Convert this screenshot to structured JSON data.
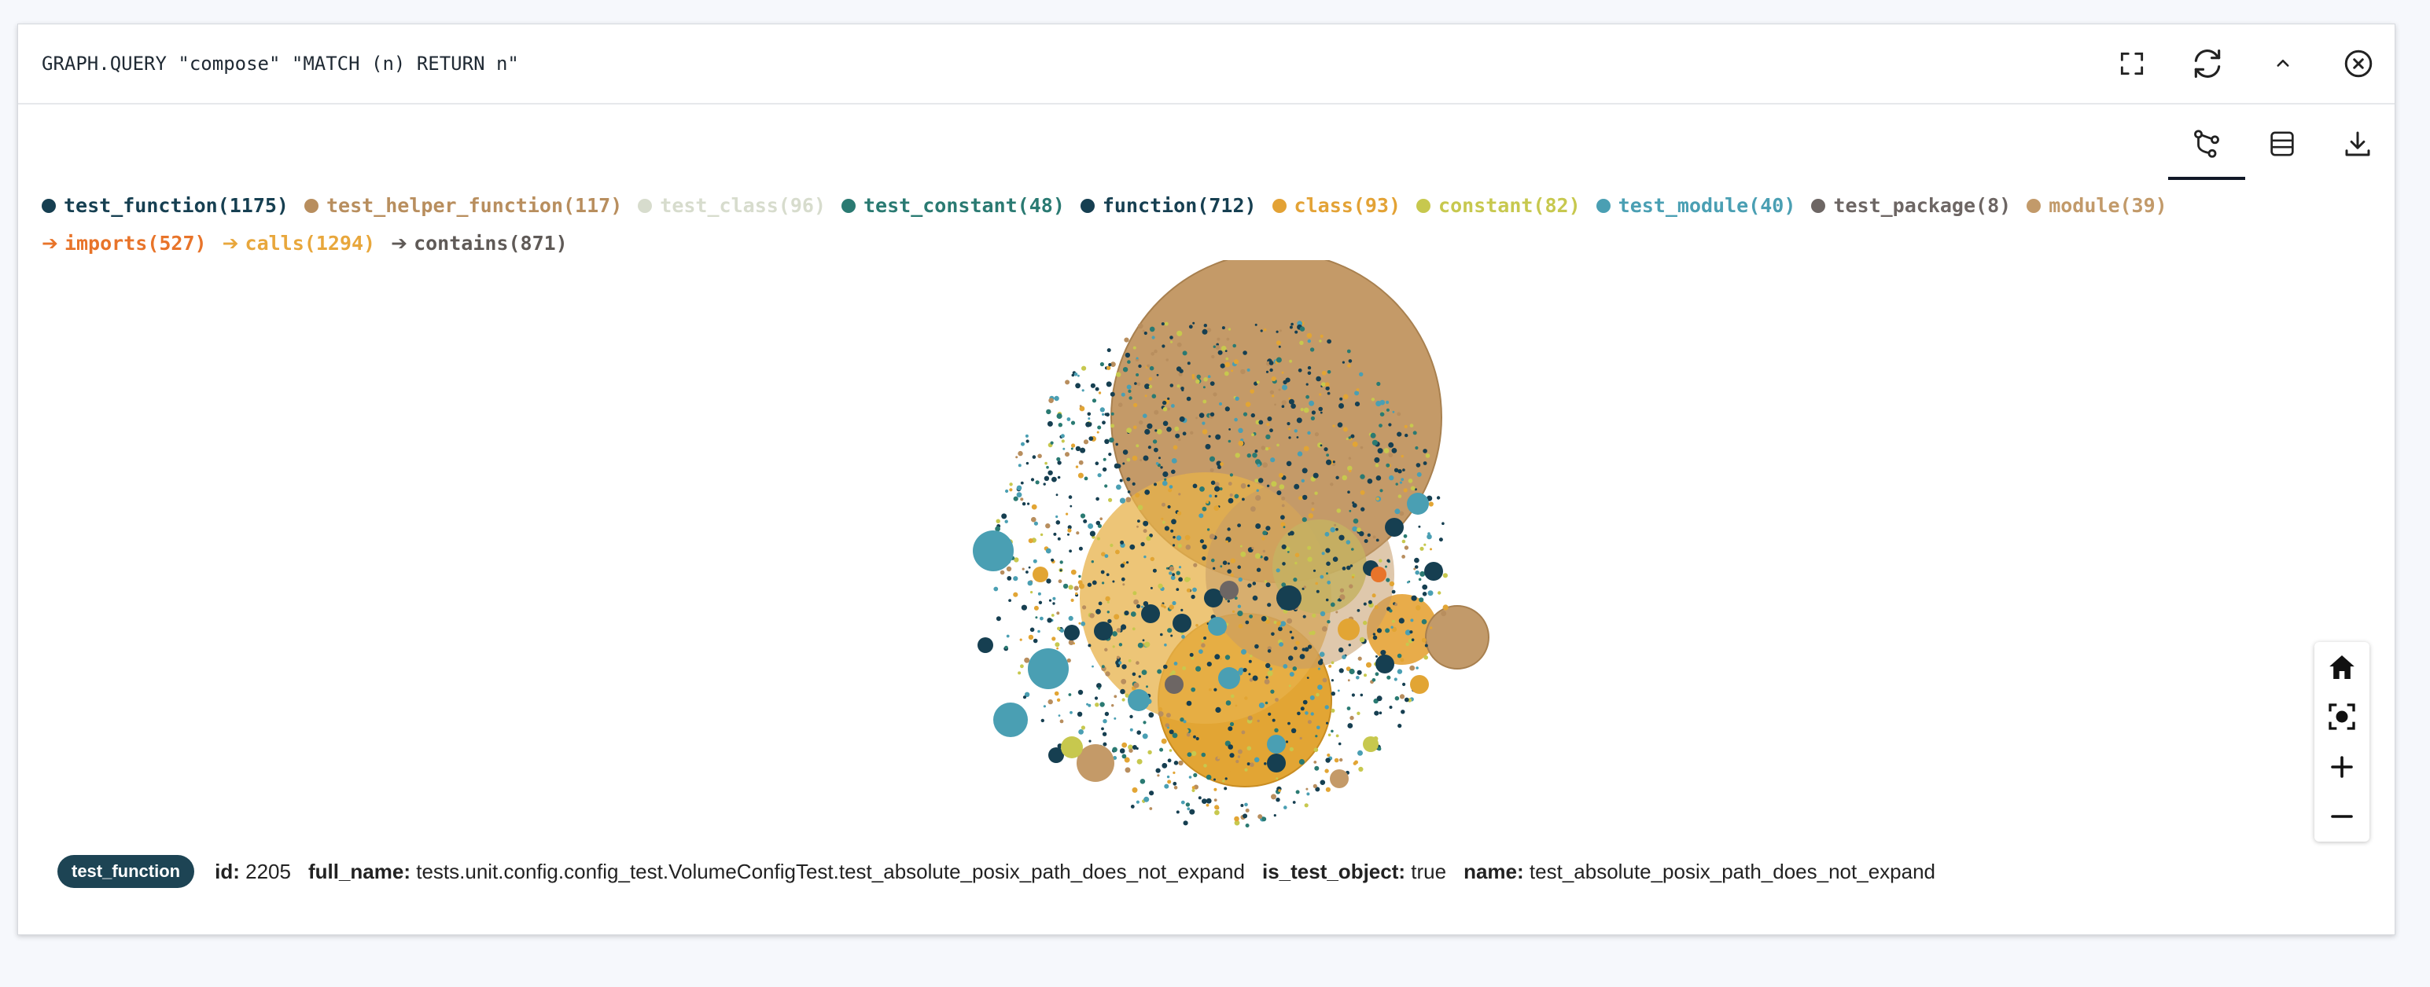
{
  "query": {
    "text": "GRAPH.QUERY \"compose\" \"MATCH (n) RETURN n\""
  },
  "header_buttons": [
    {
      "icon": "fullscreen-icon"
    },
    {
      "icon": "refresh-icon"
    },
    {
      "icon": "chevron-up-icon"
    },
    {
      "icon": "close-icon"
    }
  ],
  "toolbar": {
    "tabs": [
      {
        "icon": "graph-view-icon",
        "active": true
      },
      {
        "icon": "table-view-icon",
        "active": false
      },
      {
        "icon": "download-icon",
        "active": false
      }
    ]
  },
  "legend": {
    "nodes": [
      {
        "label": "test_function(1175)",
        "color": "#163f51"
      },
      {
        "label": "test_helper_function(117)",
        "color": "#b88e5e"
      },
      {
        "label": "test_class(96)",
        "color": "#d7dccd",
        "faded": true
      },
      {
        "label": "test_constant(48)",
        "color": "#2a7a72"
      },
      {
        "label": "function(712)",
        "color": "#163f51"
      },
      {
        "label": "class(93)",
        "color": "#e3a235"
      },
      {
        "label": "constant(82)",
        "color": "#c7c84e"
      },
      {
        "label": "test_module(40)",
        "color": "#4a9fb3"
      },
      {
        "label": "test_package(8)",
        "color": "#6d6664"
      },
      {
        "label": "module(39)",
        "color": "#c29a6a"
      }
    ],
    "edges": [
      {
        "label": "imports(527)",
        "color": "#e8742a"
      },
      {
        "label": "calls(1294)",
        "color": "#e8a73c"
      },
      {
        "label": "contains(871)",
        "color": "#5f5a57"
      }
    ]
  },
  "zoom_controls": [
    {
      "icon": "home-icon"
    },
    {
      "icon": "focus-icon"
    },
    {
      "icon": "zoom-in-icon"
    },
    {
      "icon": "zoom-out-icon"
    }
  ],
  "selected_node": {
    "label": "test_function",
    "properties": [
      {
        "key": "id:",
        "value": "2205"
      },
      {
        "key": "full_name:",
        "value": "tests.unit.config.config_test.VolumeConfigTest.test_absolute_posix_path_does_not_expand"
      },
      {
        "key": "is_test_object:",
        "value": "true"
      },
      {
        "key": "name:",
        "value": "test_absolute_posix_path_does_not_expand"
      }
    ]
  }
}
